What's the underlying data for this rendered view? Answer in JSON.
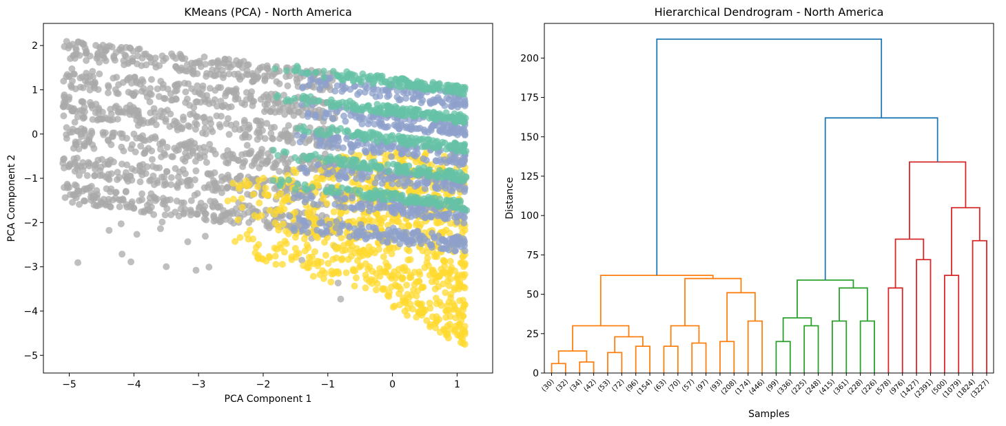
{
  "chart_data": [
    {
      "type": "scatter",
      "title": "KMeans (PCA) - North America",
      "xlabel": "PCA Component 1",
      "ylabel": "PCA Component 2",
      "xlim": [
        -5.4,
        1.55
      ],
      "ylim": [
        -5.4,
        2.5
      ],
      "xticks": [
        -5,
        -4,
        -3,
        -2,
        -1,
        0,
        1
      ],
      "yticks": [
        -5,
        -4,
        -3,
        -2,
        -1,
        0,
        1,
        2
      ],
      "grid": false,
      "clusters": [
        {
          "color": "#aaaaaa",
          "approx_x_range": [
            -5.1,
            -0.8
          ],
          "approx_y_range": [
            -4.0,
            2.15
          ]
        },
        {
          "color": "#66c2a5",
          "approx_x_range": [
            -2.0,
            1.15
          ],
          "approx_y_range": [
            -2.5,
            1.55
          ]
        },
        {
          "color": "#8da0cb",
          "approx_x_range": [
            -1.7,
            1.15
          ],
          "approx_y_range": [
            -2.9,
            1.5
          ]
        },
        {
          "color": "#ffd92f",
          "approx_x_range": [
            -3.0,
            1.15
          ],
          "approx_y_range": [
            -5.1,
            -0.3
          ]
        }
      ]
    },
    {
      "type": "dendrogram",
      "title": "Hierarchical Dendrogram - North America",
      "xlabel": "Samples",
      "ylabel": "Distance",
      "ylim": [
        0,
        222
      ],
      "yticks": [
        0,
        25,
        50,
        75,
        100,
        125,
        150,
        175,
        200
      ],
      "grid": false,
      "leaves": [
        "(30)",
        "(32)",
        "(34)",
        "(42)",
        "(53)",
        "(72)",
        "(96)",
        "(154)",
        "(63)",
        "(70)",
        "(57)",
        "(97)",
        "(93)",
        "(208)",
        "(174)",
        "(446)",
        "(99)",
        "(336)",
        "(225)",
        "(248)",
        "(415)",
        "(361)",
        "(228)",
        "(226)",
        "(578)",
        "(976)",
        "(1427)",
        "(2391)",
        "(500)",
        "(1079)",
        "(1824)",
        "(3227)"
      ],
      "merges": [
        [
          0,
          1,
          6,
          "#ff7f0e"
        ],
        [
          2,
          3,
          7,
          "#ff7f0e"
        ],
        [
          32,
          33,
          14,
          "#ff7f0e"
        ],
        [
          4,
          5,
          13,
          "#ff7f0e"
        ],
        [
          6,
          7,
          17,
          "#ff7f0e"
        ],
        [
          35,
          36,
          23,
          "#ff7f0e"
        ],
        [
          34,
          37,
          30,
          "#ff7f0e"
        ],
        [
          8,
          9,
          17,
          "#ff7f0e"
        ],
        [
          10,
          11,
          19,
          "#ff7f0e"
        ],
        [
          39,
          40,
          30,
          "#ff7f0e"
        ],
        [
          12,
          13,
          20,
          "#ff7f0e"
        ],
        [
          14,
          15,
          33,
          "#ff7f0e"
        ],
        [
          42,
          43,
          51,
          "#ff7f0e"
        ],
        [
          41,
          44,
          60,
          "#ff7f0e"
        ],
        [
          38,
          45,
          62,
          "#ff7f0e"
        ],
        [
          16,
          17,
          20,
          "#2ca02c"
        ],
        [
          18,
          19,
          30,
          "#2ca02c"
        ],
        [
          47,
          48,
          35,
          "#2ca02c"
        ],
        [
          20,
          21,
          33,
          "#2ca02c"
        ],
        [
          22,
          23,
          33,
          "#2ca02c"
        ],
        [
          50,
          51,
          54,
          "#2ca02c"
        ],
        [
          49,
          52,
          59,
          "#2ca02c"
        ],
        [
          24,
          25,
          54,
          "#d62728"
        ],
        [
          26,
          27,
          72,
          "#d62728"
        ],
        [
          54,
          55,
          85,
          "#d62728"
        ],
        [
          28,
          29,
          62,
          "#d62728"
        ],
        [
          30,
          31,
          84,
          "#d62728"
        ],
        [
          57,
          58,
          105,
          "#d62728"
        ],
        [
          56,
          59,
          134,
          "#d62728"
        ],
        [
          53,
          60,
          162,
          "#1f77b4"
        ],
        [
          46,
          61,
          212,
          "#1f77b4"
        ]
      ]
    }
  ]
}
